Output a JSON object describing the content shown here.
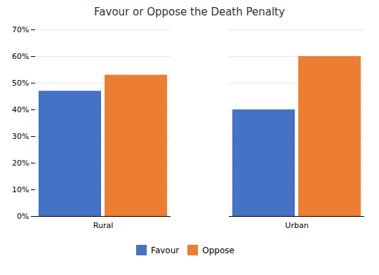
{
  "chart_data": {
    "type": "bar",
    "title": "Favour or Oppose the Death Penalty",
    "categories": [
      "Rural",
      "Urban"
    ],
    "series": [
      {
        "name": "Favour",
        "color": "#4472C4",
        "values": [
          0.47,
          0.4
        ]
      },
      {
        "name": "Oppose",
        "color": "#ED7D31",
        "values": [
          0.53,
          0.6
        ]
      }
    ],
    "ylim": [
      0,
      0.7
    ],
    "yticks": [
      {
        "value": 0.0,
        "label": "0%"
      },
      {
        "value": 0.1,
        "label": "10%"
      },
      {
        "value": 0.2,
        "label": "20%"
      },
      {
        "value": 0.3,
        "label": "30%"
      },
      {
        "value": 0.4,
        "label": "40%"
      },
      {
        "value": 0.5,
        "label": "50%"
      },
      {
        "value": 0.6,
        "label": "60%"
      },
      {
        "value": 0.7,
        "label": "70%"
      }
    ],
    "grid": true,
    "legend": "bottom"
  }
}
